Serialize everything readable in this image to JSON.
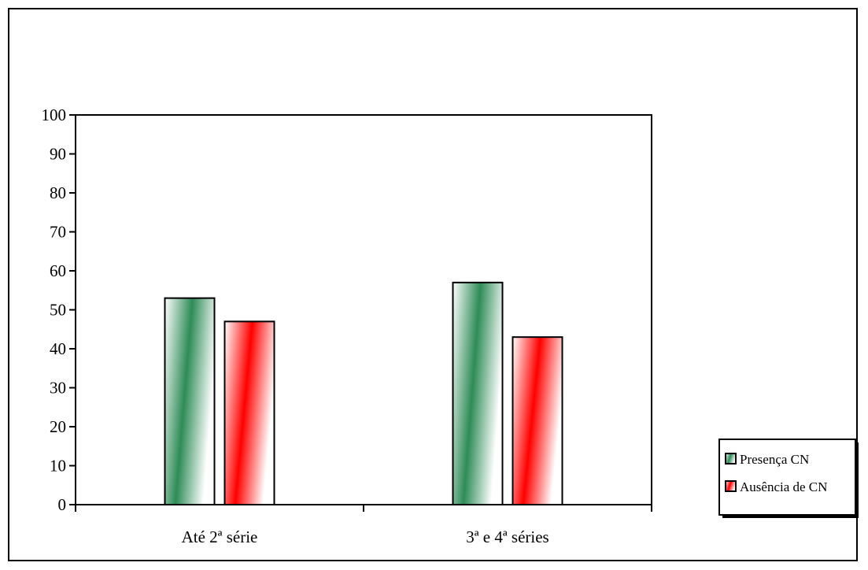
{
  "chart_data": {
    "type": "bar",
    "categories": [
      "Até 2ª série",
      "3ª e 4ª séries"
    ],
    "series": [
      {
        "name": "Presença CN",
        "values": [
          53,
          57
        ],
        "color": "#2e8b57"
      },
      {
        "name": "Ausência de CN",
        "values": [
          47,
          43
        ],
        "color": "#ff0000"
      }
    ],
    "ylim": [
      0,
      100
    ],
    "yticks": [
      0,
      10,
      20,
      30,
      40,
      50,
      60,
      70,
      80,
      90,
      100
    ],
    "title": "",
    "xlabel": "",
    "ylabel": "",
    "grid": false,
    "legend_position": "right"
  }
}
